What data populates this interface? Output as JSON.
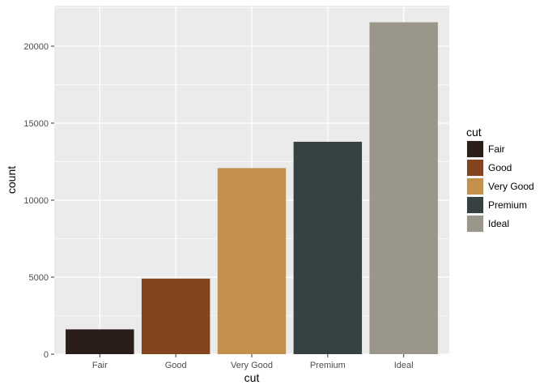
{
  "chart_data": {
    "type": "bar",
    "categories": [
      "Fair",
      "Good",
      "Very Good",
      "Premium",
      "Ideal"
    ],
    "values": [
      1610,
      4906,
      12082,
      13791,
      21551
    ],
    "colors": [
      "#2b1d1a",
      "#84441f",
      "#c4914d",
      "#364142",
      "#9a978a"
    ],
    "xlabel": "cut",
    "ylabel": "count",
    "ylim": [
      0,
      22629
    ],
    "yticks": [
      0,
      5000,
      10000,
      15000,
      20000
    ],
    "ytick_labels": [
      "0",
      "5000",
      "10000",
      "15000",
      "20000"
    ],
    "grid": true,
    "panel_background": "#ebebeb",
    "grid_color": "#ffffff",
    "legend": {
      "title": "cut",
      "position": "right",
      "entries": [
        "Fair",
        "Good",
        "Very Good",
        "Premium",
        "Ideal"
      ]
    }
  }
}
